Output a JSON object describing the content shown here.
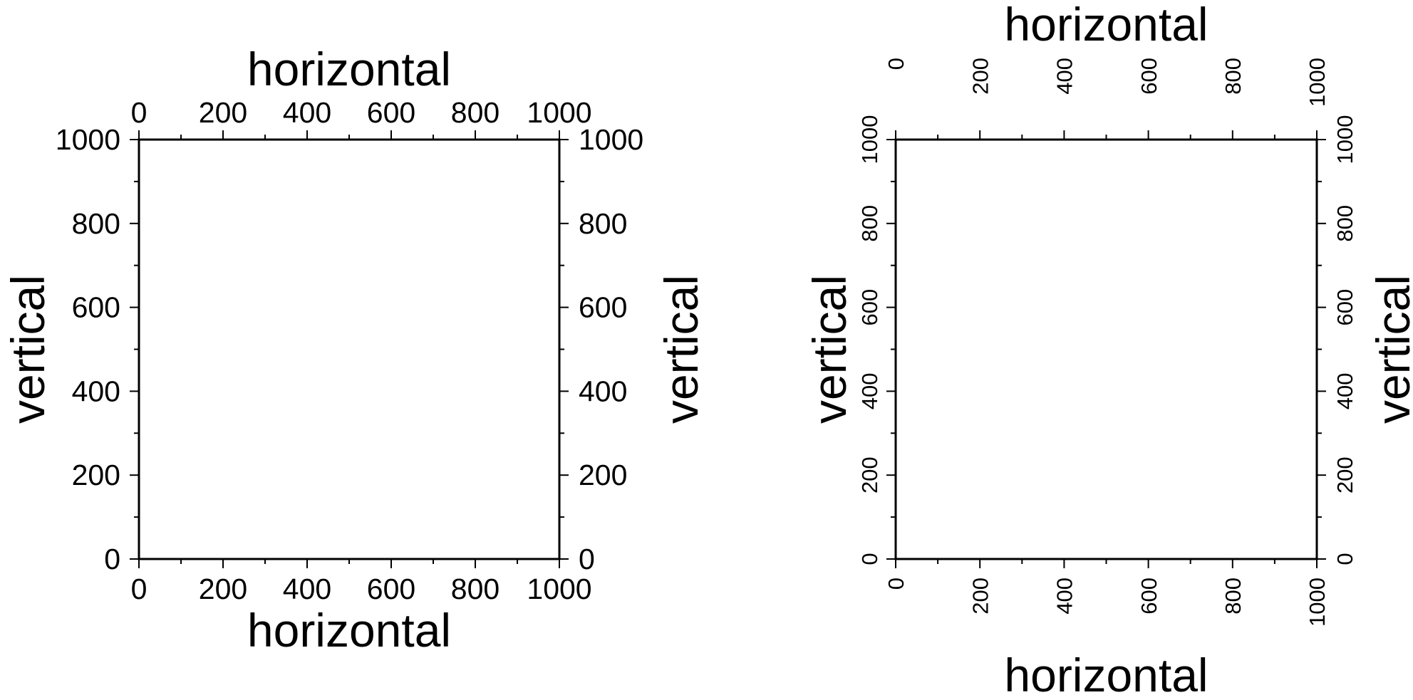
{
  "chart_data": [
    {
      "type": "scatter",
      "panel": "left",
      "xlabel": "horizontal",
      "ylabel": "vertical",
      "xlim": [
        0,
        1000
      ],
      "ylim": [
        0,
        1000
      ],
      "major_ticks": [
        0,
        200,
        400,
        600,
        800,
        1000
      ],
      "minor_tick_step": 100,
      "tick_labels": [
        "0",
        "200",
        "400",
        "600",
        "800",
        "1000"
      ],
      "tick_label_orientation": "horizontal",
      "axes_labeled": [
        "top",
        "bottom",
        "left",
        "right"
      ],
      "grid": false,
      "series": []
    },
    {
      "type": "scatter",
      "panel": "right",
      "xlabel": "horizontal",
      "ylabel": "vertical",
      "xlim": [
        0,
        1000
      ],
      "ylim": [
        0,
        1000
      ],
      "major_ticks": [
        0,
        200,
        400,
        600,
        800,
        1000
      ],
      "minor_tick_step": 100,
      "tick_labels": [
        "0",
        "200",
        "400",
        "600",
        "800",
        "1000"
      ],
      "tick_label_orientation": "vertical",
      "axes_labeled": [
        "top",
        "bottom",
        "left",
        "right"
      ],
      "grid": false,
      "series": []
    }
  ],
  "colors": {
    "frame": "#000000",
    "background": "#ffffff"
  }
}
